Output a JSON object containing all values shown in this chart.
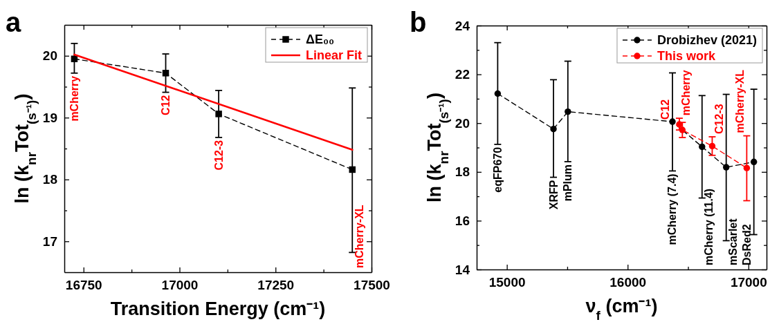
{
  "chart_data": [
    {
      "type": "line",
      "title": "a",
      "xlabel": "Transition Energy (cm⁻¹)",
      "ylabel": "ln (k$_{nr}$Tot$_{(s⁻¹)}$)",
      "xlim": [
        16700,
        17500
      ],
      "ylim": [
        16.5,
        20.5
      ],
      "xticks": [
        16750,
        {
          "value": 16875,
          "label": null
        },
        17000,
        {
          "value": 17125,
          "label": null
        },
        17250,
        {
          "value": 17375,
          "label": null
        },
        17500
      ],
      "yticks": [
        17,
        {
          "value": 17.5,
          "label": null
        },
        18,
        {
          "value": 18.5,
          "label": null
        },
        19,
        {
          "value": 19.5,
          "label": null
        },
        20
      ],
      "series": [
        {
          "name": "ΔE₀₀",
          "color": "#000000",
          "x": [
            16726,
            16964,
            17102,
            17450
          ],
          "values": [
            19.95,
            19.72,
            19.06,
            18.16
          ],
          "errors": [
            [
              19.72,
              20.2
            ],
            [
              19.41,
              20.03
            ],
            [
              18.68,
              19.44
            ],
            [
              16.82,
              19.48
            ]
          ],
          "marker": "square",
          "line_style": "dashed"
        },
        {
          "name": "Linear Fit",
          "color": "#ff0000",
          "x": [
            16726,
            17450
          ],
          "values": [
            20.02,
            18.48
          ],
          "marker": "none",
          "line_style": "solid"
        }
      ],
      "annotations": [
        "mCherry",
        "C12",
        "C12-3",
        "mCherry-XL"
      ],
      "legend": "top right"
    },
    {
      "type": "line",
      "title": "b",
      "xlabel": "ν$_{f}$ (cm⁻¹)",
      "ylabel": "ln (k$_{nr}$Tot$_{(s⁻¹)}$)",
      "xlim": [
        14750,
        17150
      ],
      "ylim": [
        14,
        24
      ],
      "xticks": [
        15000,
        {
          "value": 15500,
          "label": null
        },
        16000,
        {
          "value": 16500,
          "label": null
        },
        17000
      ],
      "yticks": [
        14,
        {
          "value": 15,
          "label": null
        },
        16,
        {
          "value": 17,
          "label": null
        },
        18,
        {
          "value": 19,
          "label": null
        },
        20,
        {
          "value": 21,
          "label": null
        },
        22,
        {
          "value": 23,
          "label": null
        },
        24
      ],
      "series": [
        {
          "name": "Drobizhev (2021)",
          "color": "#000000",
          "x": [
            14924,
            15386,
            15505,
            16371,
            16616,
            16816,
            17045
          ],
          "values": [
            21.21,
            19.76,
            20.47,
            20.06,
            19.03,
            18.19,
            18.41
          ],
          "errors": [
            [
              19.13,
              23.3
            ],
            [
              17.78,
              21.78
            ],
            [
              18.42,
              22.54
            ],
            [
              18.04,
              22.06
            ],
            [
              16.93,
              21.13
            ],
            [
              15.18,
              21.18
            ],
            [
              15.43,
              21.39
            ]
          ],
          "marker": "circle",
          "line_style": "dashed"
        },
        {
          "name": "This work",
          "color": "#ff0000",
          "x": [
            16428,
            16453,
            16700,
            16986
          ],
          "values": [
            19.95,
            19.72,
            19.06,
            18.16
          ],
          "errors": [
            [
              19.72,
              20.2
            ],
            [
              19.41,
              20.03
            ],
            [
              18.68,
              19.44
            ],
            [
              16.82,
              19.48
            ]
          ],
          "marker": "circle",
          "line_style": "dashed"
        }
      ],
      "annotations": [
        "eqFP670",
        "XRFP",
        "mPlum",
        "mCherry (7.4)",
        "mCherry (11.4)",
        "mScarlet",
        "DsRed2",
        "mCherry",
        "C12",
        "C12-3",
        "mCherry-XL"
      ],
      "legend": "top right"
    }
  ]
}
